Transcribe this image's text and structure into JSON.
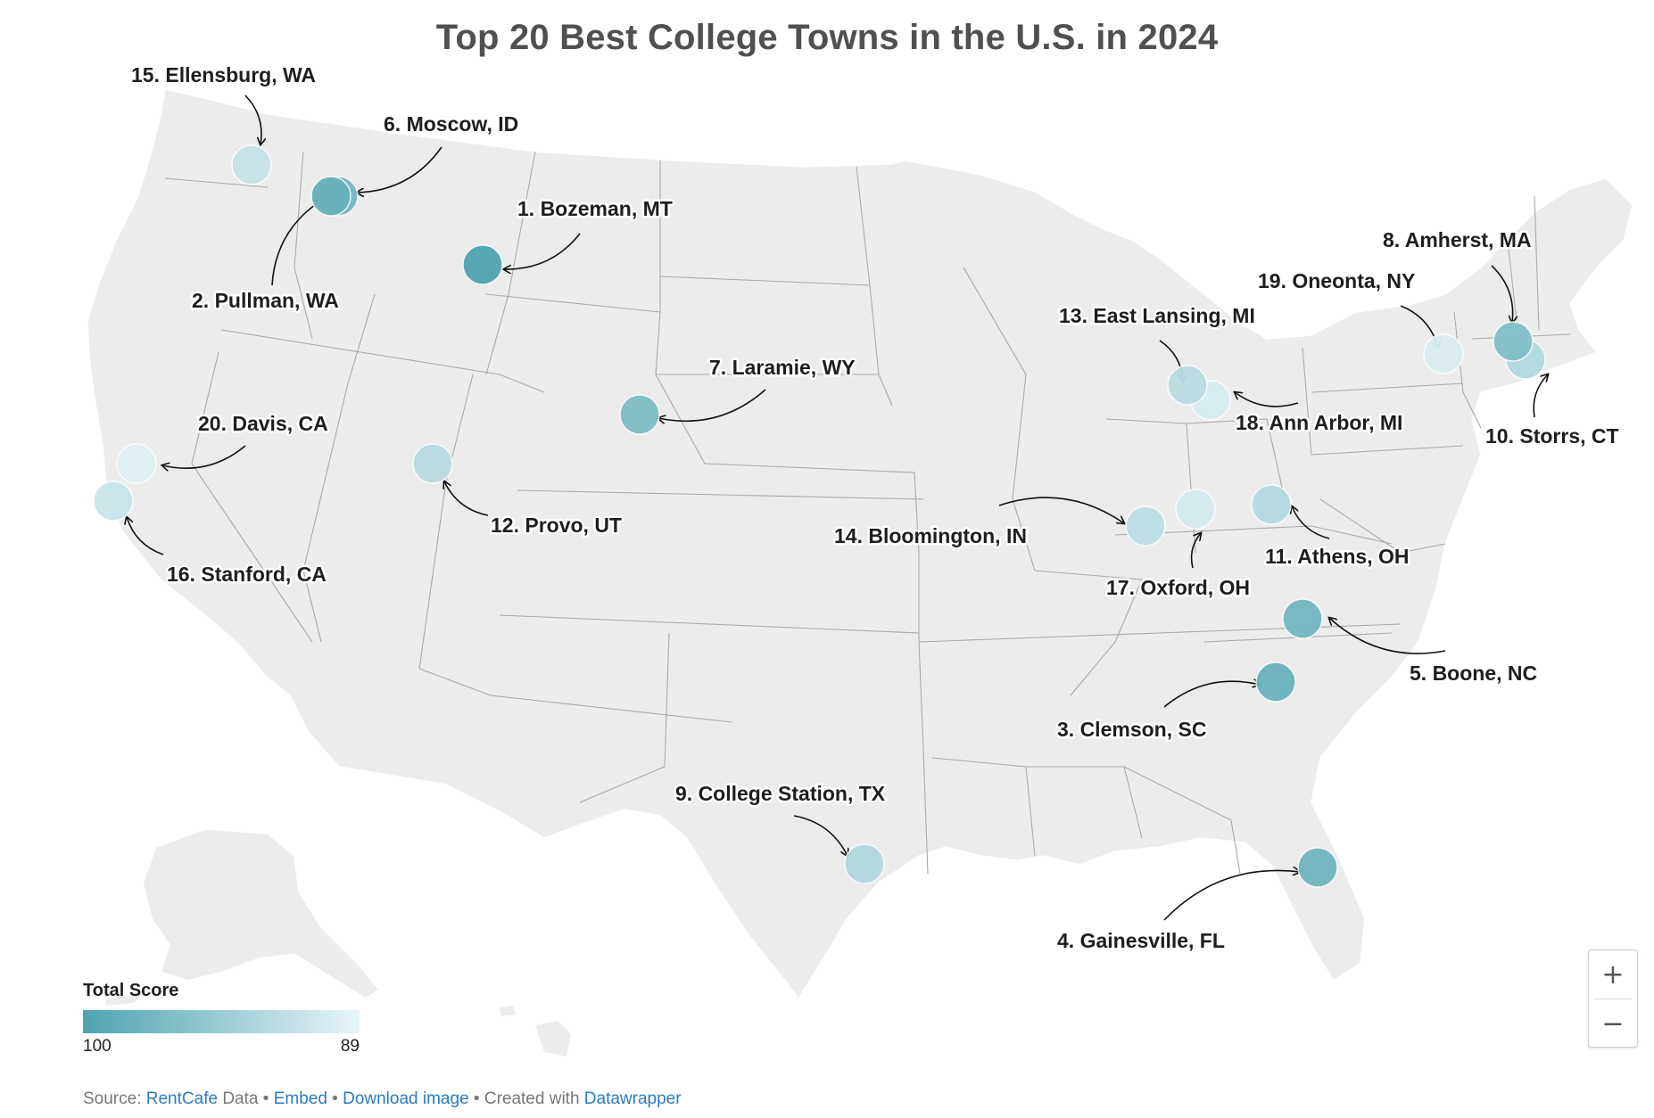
{
  "title": "Top 20 Best College Towns in the U.S. in 2024",
  "legend": {
    "title": "Total Score",
    "min_label": "100",
    "max_label": "89",
    "color_high": "#4ea3b1",
    "color_low": "#e8f5f7"
  },
  "towns": [
    {
      "rank": 1,
      "label": "1. Bozeman, MT",
      "lat": 45.68,
      "lon": -111.04,
      "score_shade": 1.0
    },
    {
      "rank": 2,
      "label": "2. Pullman, WA",
      "lat": 46.73,
      "lon": -117.18,
      "score_shade": 0.84
    },
    {
      "rank": 3,
      "label": "3. Clemson, SC",
      "lat": 34.68,
      "lon": -82.84,
      "score_shade": 0.82
    },
    {
      "rank": 4,
      "label": "4. Gainesville, FL",
      "lat": 29.65,
      "lon": -82.32,
      "score_shade": 0.78
    },
    {
      "rank": 5,
      "label": "5. Boone, NC",
      "lat": 36.22,
      "lon": -81.67,
      "score_shade": 0.76
    },
    {
      "rank": 6,
      "label": "6. Moscow, ID",
      "lat": 46.73,
      "lon": -117.0,
      "score_shade": 0.74
    },
    {
      "rank": 7,
      "label": "7. Laramie, WY",
      "lat": 41.31,
      "lon": -105.59,
      "score_shade": 0.68
    },
    {
      "rank": 8,
      "label": "8. Amherst, MA",
      "lat": 42.37,
      "lon": -72.52,
      "score_shade": 0.66
    },
    {
      "rank": 9,
      "label": "9. College Station, TX",
      "lat": 30.63,
      "lon": -96.33,
      "score_shade": 0.36
    },
    {
      "rank": 10,
      "label": "10. Storrs, CT",
      "lat": 41.81,
      "lon": -72.25,
      "score_shade": 0.35
    },
    {
      "rank": 11,
      "label": "11. Athens, OH",
      "lat": 39.33,
      "lon": -82.1,
      "score_shade": 0.33
    },
    {
      "rank": 12,
      "label": "12. Provo, UT",
      "lat": 40.23,
      "lon": -111.66,
      "score_shade": 0.31
    },
    {
      "rank": 13,
      "label": "13. East Lansing, MI",
      "lat": 42.74,
      "lon": -84.48,
      "score_shade": 0.3
    },
    {
      "rank": 14,
      "label": "14. Bloomington, IN",
      "lat": 39.17,
      "lon": -86.53,
      "score_shade": 0.27
    },
    {
      "rank": 15,
      "label": "15. Ellensburg, WA",
      "lat": 46.99,
      "lon": -120.55,
      "score_shade": 0.22
    },
    {
      "rank": 16,
      "label": "16. Stanford, CA",
      "lat": 37.43,
      "lon": -122.17,
      "score_shade": 0.2
    },
    {
      "rank": 17,
      "label": "17. Oxford, OH",
      "lat": 39.51,
      "lon": -84.75,
      "score_shade": 0.12
    },
    {
      "rank": 18,
      "label": "18. Ann Arbor, MI",
      "lat": 42.28,
      "lon": -83.74,
      "score_shade": 0.1
    },
    {
      "rank": 19,
      "label": "19. Oneonta, NY",
      "lat": 42.45,
      "lon": -75.06,
      "score_shade": 0.08
    },
    {
      "rank": 20,
      "label": "20. Davis, CA",
      "lat": 38.54,
      "lon": -121.74,
      "score_shade": 0.05
    }
  ],
  "zoom": {
    "in_label": "+",
    "out_label": "−"
  },
  "footer": {
    "prefix": "Source: ",
    "source_link": "RentCafe",
    "source_suffix": " Data",
    "sep1": " • ",
    "embed": "Embed",
    "sep2": " • ",
    "download": "Download image",
    "sep3": " • Created with ",
    "datawrapper": "Datawrapper"
  },
  "colors": {
    "land": "#ececec",
    "border": "#a9a9a9",
    "title": "#505050"
  }
}
